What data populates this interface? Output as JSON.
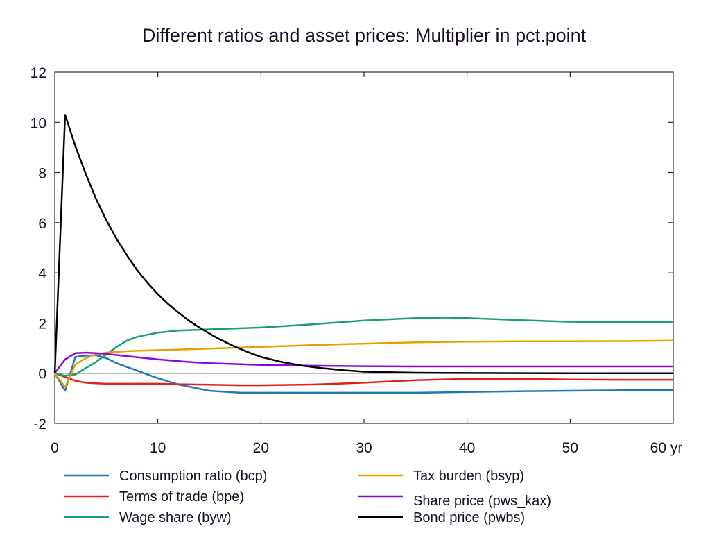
{
  "chart_data": {
    "type": "line",
    "title": "Different ratios and asset prices: Multiplier in pct.point",
    "xlabel": "",
    "ylabel": "",
    "xlim": [
      0,
      60
    ],
    "ylim": [
      -2,
      12
    ],
    "x_ticks": [
      0,
      10,
      20,
      30,
      40,
      50,
      60
    ],
    "x_tick_labels": [
      "0",
      "10",
      "20",
      "30",
      "40",
      "50",
      "60 yr"
    ],
    "y_ticks": [
      -2,
      0,
      2,
      4,
      6,
      8,
      10,
      12
    ],
    "y_tick_labels": [
      "-2",
      "0",
      "2",
      "4",
      "6",
      "8",
      "10",
      "12"
    ],
    "zero_line": true,
    "grid": false,
    "legend_position": "bottom",
    "series": [
      {
        "name": "Consumption ratio (bcp)",
        "color": "#1f77b4",
        "points": [
          [
            0,
            0
          ],
          [
            1,
            -0.7
          ],
          [
            2,
            0.65
          ],
          [
            3,
            0.7
          ],
          [
            4,
            0.72
          ],
          [
            5,
            0.6
          ],
          [
            6,
            0.4
          ],
          [
            8,
            0.1
          ],
          [
            10,
            -0.2
          ],
          [
            12,
            -0.45
          ],
          [
            15,
            -0.7
          ],
          [
            18,
            -0.78
          ],
          [
            20,
            -0.78
          ],
          [
            25,
            -0.78
          ],
          [
            30,
            -0.78
          ],
          [
            35,
            -0.78
          ],
          [
            40,
            -0.75
          ],
          [
            45,
            -0.72
          ],
          [
            50,
            -0.7
          ],
          [
            55,
            -0.68
          ],
          [
            60,
            -0.68
          ]
        ]
      },
      {
        "name": "Terms of trade (bpe)",
        "color": "#e3211c",
        "points": [
          [
            0,
            0
          ],
          [
            1,
            -0.15
          ],
          [
            2,
            -0.3
          ],
          [
            3,
            -0.38
          ],
          [
            4,
            -0.4
          ],
          [
            5,
            -0.42
          ],
          [
            8,
            -0.42
          ],
          [
            10,
            -0.42
          ],
          [
            12,
            -0.44
          ],
          [
            15,
            -0.46
          ],
          [
            18,
            -0.48
          ],
          [
            20,
            -0.48
          ],
          [
            25,
            -0.45
          ],
          [
            30,
            -0.38
          ],
          [
            35,
            -0.28
          ],
          [
            40,
            -0.22
          ],
          [
            45,
            -0.22
          ],
          [
            50,
            -0.25
          ],
          [
            55,
            -0.26
          ],
          [
            60,
            -0.26
          ]
        ]
      },
      {
        "name": "Wage share (byw)",
        "color": "#1b9e77",
        "points": [
          [
            0,
            0
          ],
          [
            1,
            -0.1
          ],
          [
            2,
            -0.05
          ],
          [
            3,
            0.2
          ],
          [
            4,
            0.45
          ],
          [
            5,
            0.75
          ],
          [
            6,
            1.05
          ],
          [
            7,
            1.3
          ],
          [
            8,
            1.45
          ],
          [
            10,
            1.62
          ],
          [
            12,
            1.7
          ],
          [
            15,
            1.75
          ],
          [
            20,
            1.82
          ],
          [
            25,
            1.95
          ],
          [
            30,
            2.1
          ],
          [
            35,
            2.2
          ],
          [
            38,
            2.22
          ],
          [
            40,
            2.2
          ],
          [
            45,
            2.12
          ],
          [
            50,
            2.05
          ],
          [
            55,
            2.03
          ],
          [
            60,
            2.05
          ]
        ]
      },
      {
        "name": "Tax burden (bsyp)",
        "color": "#e6a100",
        "points": [
          [
            0,
            0
          ],
          [
            1,
            -0.55
          ],
          [
            2,
            0.35
          ],
          [
            3,
            0.6
          ],
          [
            4,
            0.75
          ],
          [
            5,
            0.82
          ],
          [
            7,
            0.88
          ],
          [
            10,
            0.92
          ],
          [
            15,
            0.98
          ],
          [
            20,
            1.05
          ],
          [
            25,
            1.12
          ],
          [
            30,
            1.18
          ],
          [
            35,
            1.23
          ],
          [
            40,
            1.26
          ],
          [
            45,
            1.27
          ],
          [
            50,
            1.27
          ],
          [
            55,
            1.28
          ],
          [
            60,
            1.3
          ]
        ]
      },
      {
        "name": "Share price (pws_kax)",
        "color": "#8b08d8",
        "points": [
          [
            0,
            0
          ],
          [
            1,
            0.55
          ],
          [
            2,
            0.8
          ],
          [
            3,
            0.82
          ],
          [
            4,
            0.8
          ],
          [
            5,
            0.77
          ],
          [
            7,
            0.68
          ],
          [
            10,
            0.55
          ],
          [
            13,
            0.45
          ],
          [
            15,
            0.4
          ],
          [
            20,
            0.33
          ],
          [
            25,
            0.3
          ],
          [
            30,
            0.28
          ],
          [
            35,
            0.27
          ],
          [
            40,
            0.27
          ],
          [
            50,
            0.27
          ],
          [
            60,
            0.27
          ]
        ]
      },
      {
        "name": "Bond price (pwbs)",
        "color": "#000000",
        "points": [
          [
            0,
            0
          ],
          [
            1,
            10.3
          ],
          [
            2,
            9.05
          ],
          [
            3,
            7.95
          ],
          [
            4,
            6.95
          ],
          [
            5,
            6.1
          ],
          [
            6,
            5.35
          ],
          [
            7,
            4.7
          ],
          [
            8,
            4.1
          ],
          [
            9,
            3.6
          ],
          [
            10,
            3.15
          ],
          [
            11,
            2.76
          ],
          [
            12,
            2.42
          ],
          [
            13,
            2.1
          ],
          [
            14,
            1.83
          ],
          [
            15,
            1.58
          ],
          [
            16,
            1.35
          ],
          [
            17,
            1.15
          ],
          [
            18,
            0.97
          ],
          [
            19,
            0.8
          ],
          [
            20,
            0.65
          ],
          [
            22,
            0.45
          ],
          [
            24,
            0.3
          ],
          [
            26,
            0.2
          ],
          [
            28,
            0.12
          ],
          [
            30,
            0.06
          ],
          [
            35,
            0.02
          ],
          [
            40,
            0.01
          ],
          [
            50,
            0
          ],
          [
            60,
            0
          ]
        ]
      }
    ]
  }
}
